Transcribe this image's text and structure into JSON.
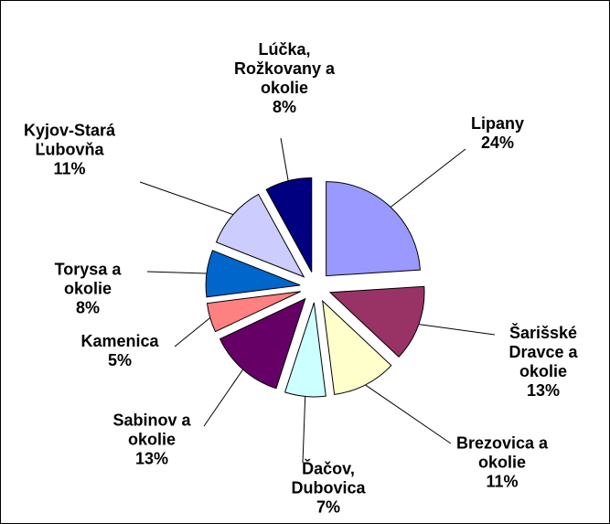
{
  "chart_data": {
    "type": "pie",
    "categories": [
      "Lipany",
      "Šarišské Dravce a okolie",
      "Brezovica a okolie",
      "Ďačov, Dubovica",
      "Sabinov a okolie",
      "Kamenica",
      "Torysa a okolie",
      "Kyjov-Stará Ľubovňa",
      "Lúčka, Rožkovany a okolie"
    ],
    "values": [
      24,
      13,
      11,
      7,
      13,
      5,
      8,
      11,
      8
    ],
    "value_labels": [
      "24%",
      "13%",
      "11%",
      "7%",
      "13%",
      "5%",
      "8%",
      "11%",
      "8%"
    ],
    "colors": [
      "#9999ff",
      "#993366",
      "#ffffcc",
      "#ccffff",
      "#660066",
      "#ff8080",
      "#0066cc",
      "#ccccff",
      "#000080"
    ]
  }
}
